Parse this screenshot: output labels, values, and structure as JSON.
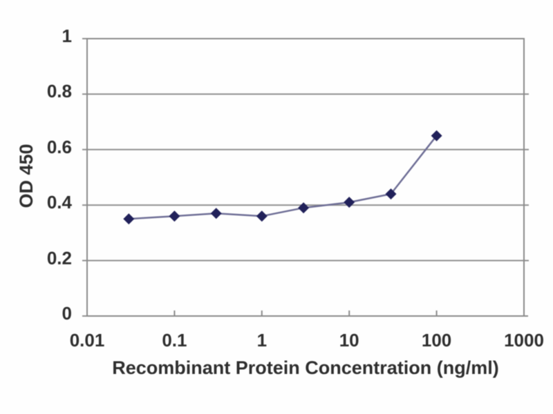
{
  "chart_data": {
    "type": "line",
    "title": "",
    "xlabel": "Recombinant Protein Concentration (ng/ml)",
    "ylabel": "OD 450",
    "x_scale": "log",
    "xlim": [
      0.01,
      1000
    ],
    "ylim": [
      0,
      1
    ],
    "x_ticks": [
      0.01,
      0.1,
      1,
      10,
      100,
      1000
    ],
    "x_tick_labels": [
      "0.01",
      "0.1",
      "1",
      "10",
      "100",
      "1000"
    ],
    "y_ticks": [
      0,
      0.2,
      0.4,
      0.6,
      0.8,
      1
    ],
    "y_tick_labels": [
      "0",
      "0.2",
      "0.4",
      "0.6",
      "0.8",
      "1"
    ],
    "grid": "horizontal-only",
    "legend_position": "none",
    "series": [
      {
        "name": "OD450",
        "marker": "diamond",
        "x": [
          0.03,
          0.1,
          0.3,
          1,
          3,
          10,
          30,
          100
        ],
        "y": [
          0.35,
          0.36,
          0.37,
          0.36,
          0.39,
          0.41,
          0.44,
          0.65
        ]
      }
    ],
    "colors": {
      "line": "#6e6e96",
      "marker": "#21215a",
      "grid": "#909090",
      "axis_box": "#8a8a8a",
      "text": "#2e2e2e",
      "background": "#fefefe"
    }
  }
}
